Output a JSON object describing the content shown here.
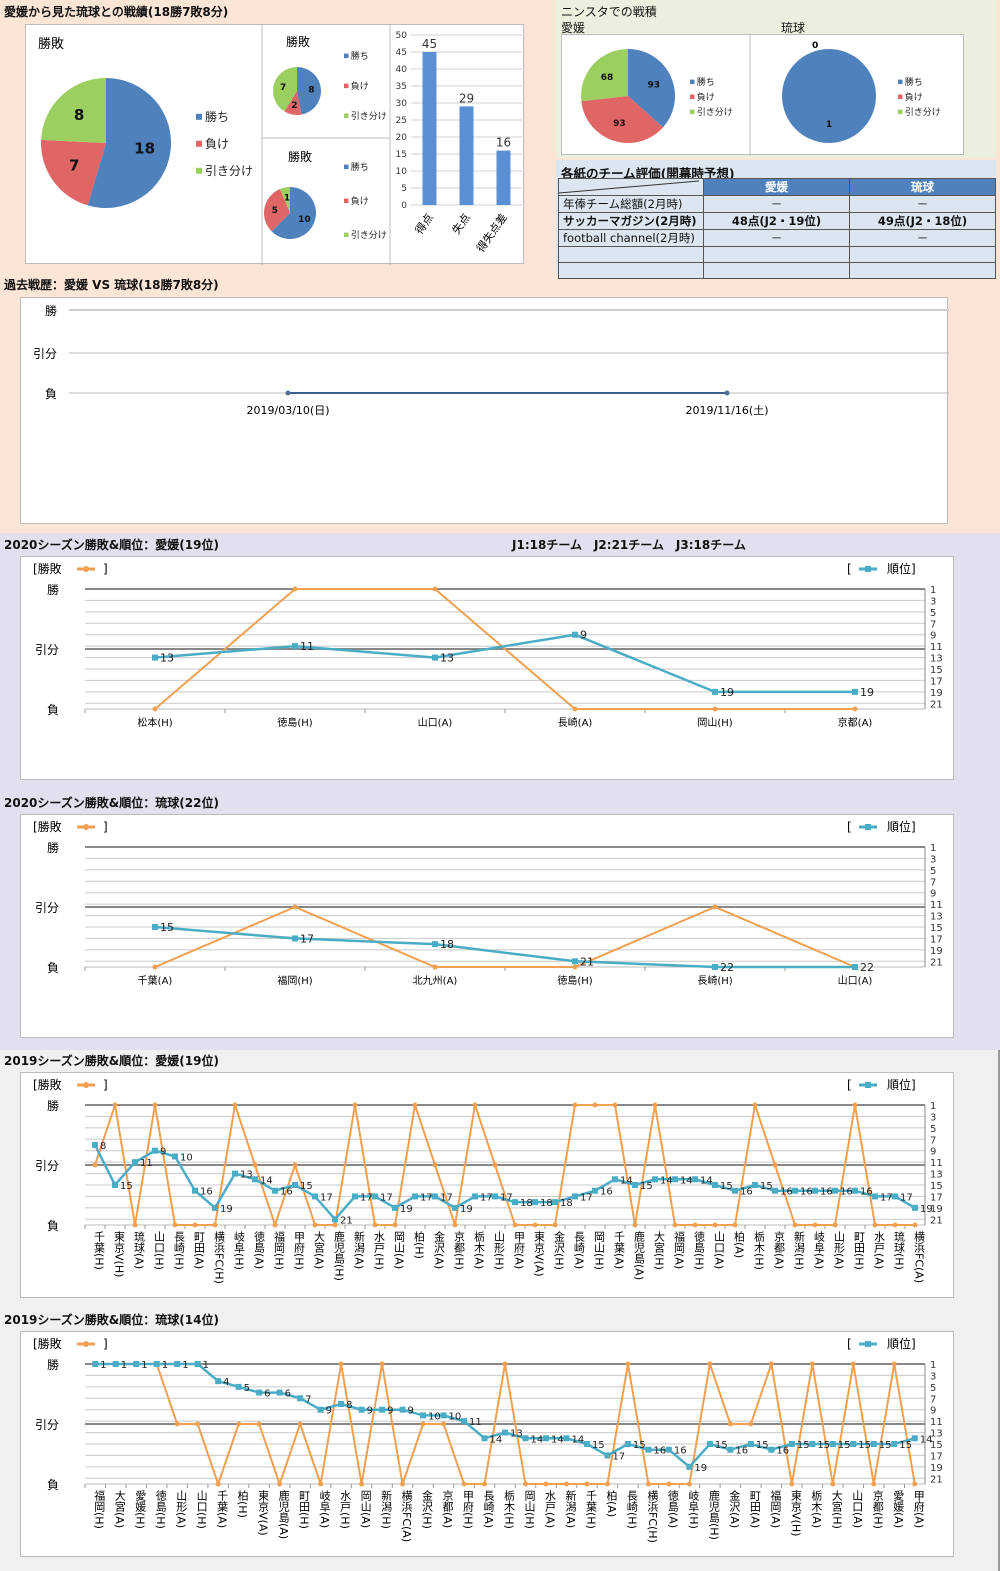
{
  "h2h_summary": {
    "title": "愛媛から見た琉球との戦績(18勝7敗8分)",
    "legend": [
      "勝ち",
      "負け",
      "引き分け"
    ],
    "pies": [
      {
        "title": "勝敗",
        "values": [
          18,
          7,
          8
        ]
      },
      {
        "title": "勝敗",
        "values": [
          8,
          2,
          7
        ]
      },
      {
        "title": "勝敗",
        "values": [
          10,
          5,
          1
        ]
      }
    ],
    "goals": {
      "categories": [
        "得点",
        "失点",
        "得失点差"
      ],
      "values": [
        45,
        29,
        16
      ],
      "yticks": [
        0,
        5,
        10,
        15,
        20,
        25,
        30,
        35,
        40,
        45,
        50
      ]
    }
  },
  "ninsta": {
    "title": "ニンスタでの戦積",
    "legend": [
      "勝ち",
      "負け",
      "引き分け"
    ],
    "teams": [
      {
        "name": "愛媛",
        "values": [
          93,
          93,
          68
        ]
      },
      {
        "name": "琉球",
        "values": [
          1,
          0,
          0
        ]
      }
    ]
  },
  "evaluation": {
    "title": "各紙のチーム評価(開幕時予想)",
    "headers": [
      "",
      "愛媛",
      "琉球"
    ],
    "rows": [
      {
        "label": "年俸チーム総額(2月時)",
        "ehime": "－",
        "ryukyu": "－",
        "bold": false
      },
      {
        "label": "サッカーマガジン(2月時)",
        "ehime": "48点(J2・19位)",
        "ryukyu": "49点(J2・18位)",
        "bold": true
      },
      {
        "label": "football channel(2月時)",
        "ehime": "－",
        "ryukyu": "－",
        "bold": false
      },
      {
        "label": "",
        "ehime": "",
        "ryukyu": "",
        "bold": false
      },
      {
        "label": "",
        "ehime": "",
        "ryukyu": "",
        "bold": false
      }
    ]
  },
  "history": {
    "title": "過去戦歴：愛媛 VS 琉球(18勝7敗8分)",
    "ylabels": [
      "勝",
      "引分",
      "負"
    ],
    "dates": [
      "2019/03/10(日)",
      "2019/11/16(土)"
    ],
    "results": [
      "負",
      "負"
    ]
  },
  "league_note": "J1:18チーム　J2:21チーム　J3:18チーム",
  "legend_labels": {
    "result": "[勝敗",
    "result_close": "]",
    "rank_open": "[",
    "rank": "順位]"
  },
  "result_axis": [
    "勝",
    "引分",
    "負"
  ],
  "rank_ticks": [
    1,
    3,
    5,
    7,
    9,
    11,
    13,
    15,
    17,
    19,
    21
  ],
  "chart_data": [
    {
      "type": "line",
      "title": "2020シーズン勝敗&順位：愛媛(19位)",
      "categories": [
        "松本(H)",
        "徳島(H)",
        "山口(A)",
        "長崎(A)",
        "岡山(H)",
        "京都(A)"
      ],
      "series": [
        {
          "name": "勝敗",
          "values": [
            0,
            2,
            2,
            0,
            0,
            0
          ],
          "scale": "0=負,1=引分,2=勝"
        },
        {
          "name": "順位",
          "values": [
            13,
            11,
            13,
            9,
            19,
            19
          ]
        }
      ],
      "rank_axis": [
        1,
        22
      ]
    },
    {
      "type": "line",
      "title": "2020シーズン勝敗&順位：琉球(22位)",
      "categories": [
        "千葉(A)",
        "福岡(H)",
        "北九州(A)",
        "徳島(H)",
        "長崎(H)",
        "山口(A)"
      ],
      "series": [
        {
          "name": "勝敗",
          "values": [
            0,
            1,
            0,
            0,
            1,
            0
          ]
        },
        {
          "name": "順位",
          "values": [
            15,
            17,
            18,
            21,
            22,
            22
          ]
        }
      ],
      "rank_axis": [
        1,
        22
      ]
    },
    {
      "type": "line",
      "title": "2019シーズン勝敗&順位：愛媛(19位)",
      "categories": [
        "千葉(H)",
        "東京V(H)",
        "琉球(A)",
        "山口(H)",
        "長崎(H)",
        "町田(A)",
        "横浜FC(H)",
        "岐阜(H)",
        "徳島(A)",
        "福岡(H)",
        "甲府(H)",
        "大宮(A)",
        "鹿児島(H)",
        "新潟(A)",
        "水戸(H)",
        "岡山(A)",
        "柏(H)",
        "金沢(A)",
        "京都(H)",
        "栃木(A)",
        "山形(H)",
        "甲府(A)",
        "東京V(A)",
        "金沢(H)",
        "長崎(A)",
        "岡山(H)",
        "千葉(A)",
        "鹿児島(A)",
        "大宮(H)",
        "福岡(A)",
        "徳島(H)",
        "山口(A)",
        "柏(A)",
        "栃木(H)",
        "京都(A)",
        "新潟(H)",
        "岐阜(A)",
        "山形(A)",
        "町田(H)",
        "水戸(A)",
        "琉球(H)",
        "横浜FC(A)"
      ],
      "series": [
        {
          "name": "勝敗",
          "values": [
            1,
            2,
            0,
            2,
            0,
            0,
            0,
            2,
            1,
            0,
            1,
            0,
            0,
            2,
            0,
            0,
            2,
            1,
            0,
            2,
            1,
            0,
            0,
            0,
            2,
            2,
            2,
            0,
            2,
            0,
            0,
            0,
            0,
            2,
            1,
            0,
            0,
            0,
            2,
            0,
            0,
            0
          ]
        },
        {
          "name": "順位",
          "values": [
            8,
            15,
            11,
            9,
            10,
            16,
            19,
            13,
            14,
            16,
            15,
            17,
            21,
            17,
            17,
            19,
            17,
            17,
            19,
            17,
            17,
            18,
            18,
            18,
            17,
            16,
            14,
            15,
            14,
            14,
            14,
            15,
            16,
            15,
            16,
            16,
            16,
            16,
            16,
            17,
            17,
            19
          ]
        }
      ],
      "rank_axis": [
        1,
        22
      ]
    },
    {
      "type": "line",
      "title": "2019シーズン勝敗&順位：琉球(14位)",
      "categories": [
        "福岡(H)",
        "大宮(A)",
        "愛媛(H)",
        "徳島(H)",
        "山形(A)",
        "山口(H)",
        "千葉(A)",
        "柏(H)",
        "東京V(A)",
        "鹿児島(A)",
        "町田(H)",
        "岐阜(A)",
        "水戸(H)",
        "岡山(A)",
        "新潟(H)",
        "横浜FC(A)",
        "金沢(H)",
        "京都(A)",
        "甲府(H)",
        "長崎(A)",
        "栃木(H)",
        "岡山(H)",
        "水戸(A)",
        "新潟(A)",
        "千葉(H)",
        "柏(A)",
        "長崎(H)",
        "横浜FC(H)",
        "徳島(A)",
        "岐阜(H)",
        "鹿児島(H)",
        "金沢(A)",
        "町田(A)",
        "福岡(A)",
        "東京V(H)",
        "栃木(A)",
        "大宮(H)",
        "山口(A)",
        "京都(H)",
        "愛媛(A)",
        "甲府(A)"
      ],
      "series": [
        {
          "name": "勝敗",
          "values": [
            2,
            2,
            2,
            2,
            1,
            1,
            0,
            1,
            1,
            0,
            1,
            0,
            2,
            0,
            2,
            0,
            1,
            1,
            0,
            0,
            2,
            0,
            0,
            0,
            0,
            0,
            2,
            0,
            0,
            0,
            2,
            1,
            1,
            2,
            0,
            2,
            0,
            2,
            0,
            2,
            0
          ]
        },
        {
          "name": "順位",
          "values": [
            1,
            1,
            1,
            1,
            1,
            1,
            4,
            5,
            6,
            6,
            7,
            9,
            8,
            9,
            9,
            9,
            10,
            10,
            11,
            14,
            13,
            14,
            14,
            14,
            15,
            17,
            15,
            16,
            16,
            19,
            15,
            16,
            15,
            16,
            15,
            15,
            15,
            15,
            15,
            15,
            14
          ]
        }
      ],
      "rank_axis": [
        1,
        22
      ]
    }
  ]
}
